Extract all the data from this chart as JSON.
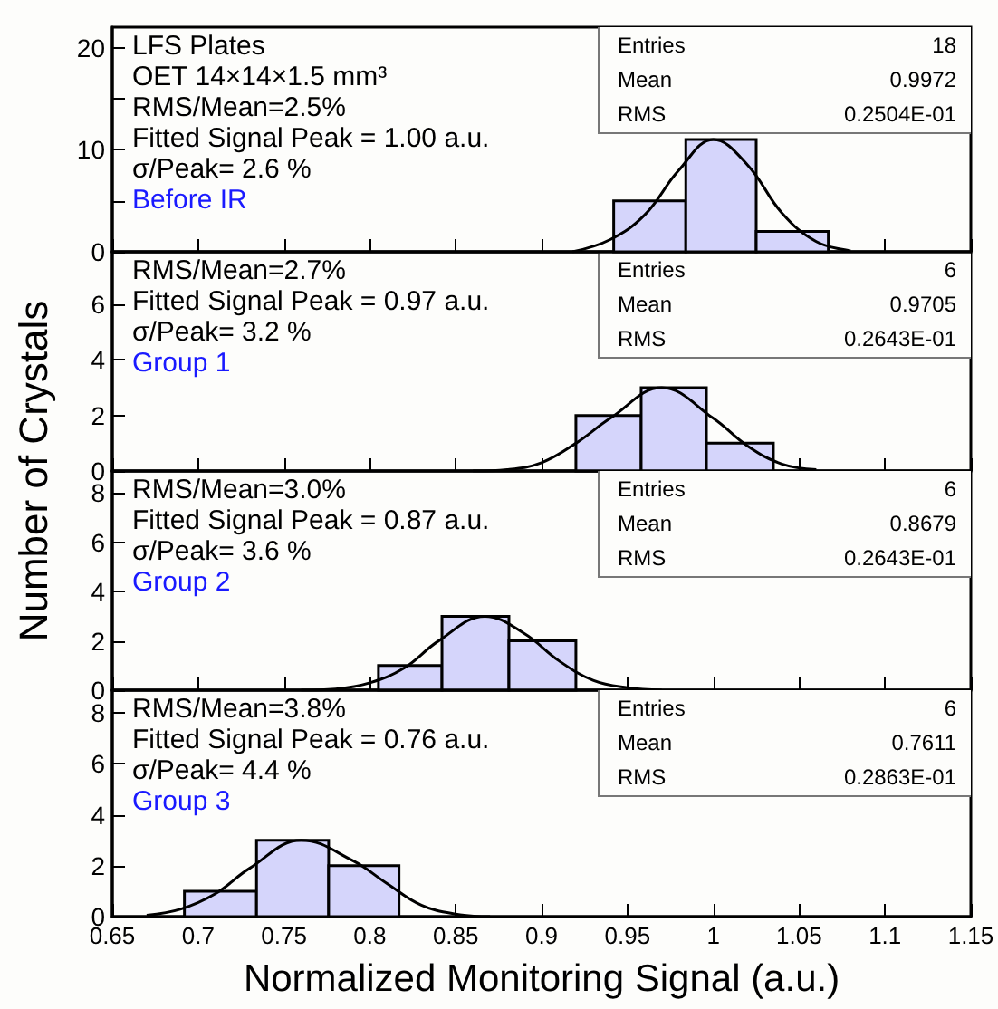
{
  "chart_data": [
    {
      "type": "histogram",
      "title": "Before IR",
      "ylabel": "Number of Crystals",
      "annotations": [
        "LFS Plates",
        "OET  14×14×1.5 mm³",
        "RMS/Mean=2.5%",
        "Fitted Signal Peak = 1.00 a.u.",
        "σ/Peak= 2.6 %",
        "Entries",
        "18",
        "Mean",
        "0.9972",
        "RMS",
        "0.2504E-01"
      ],
      "bins": [
        0.942,
        0.984,
        1.025,
        1.067
      ],
      "series": [
        {
          "color": "#d5d5fb",
          "values": [
            5,
            11,
            2
          ]
        },
        {
          "type": "line",
          "color": "#000000",
          "x": [
            0.918,
            0.94,
            0.96,
            0.98,
            1.0,
            1.02,
            1.04,
            1.06,
            1.08
          ],
          "values": [
            0,
            1.2,
            3.6,
            8,
            11,
            8.5,
            3.8,
            1,
            0.1
          ]
        }
      ],
      "xlim": [
        0.65,
        1.15
      ],
      "xticks": [
        0.65,
        0.7,
        0.75,
        0.8,
        0.85,
        0.9,
        0.95,
        1,
        1.05,
        1.1,
        1.15
      ],
      "ylim": [
        0,
        22
      ],
      "yticks": [
        0,
        {
          "value": 5,
          "label": null
        },
        10,
        {
          "value": 15,
          "label": null
        },
        20
      ],
      "tick_labels": "y"
    },
    {
      "type": "histogram",
      "title": "Group 1",
      "annotations": [
        "RMS/Mean=2.7%",
        "Fitted Signal Peak = 0.97 a.u.",
        "σ/Peak= 3.2 %",
        "Entries",
        "6",
        "Mean",
        "0.9705",
        "RMS",
        "0.2643E-01"
      ],
      "bins": [
        0.92,
        0.958,
        0.996,
        1.035
      ],
      "series": [
        {
          "color": "#d5d5fb",
          "values": [
            2,
            3,
            1
          ]
        },
        {
          "type": "line",
          "color": "#000000",
          "x": [
            0.86,
            0.88,
            0.9,
            0.92,
            0.94,
            0.97,
            1.0,
            1.02,
            1.04,
            1.06
          ],
          "values": [
            0,
            0.05,
            0.3,
            1,
            1.9,
            3,
            1.9,
            0.9,
            0.25,
            0.05
          ]
        }
      ],
      "xlim": [
        0.65,
        1.15
      ],
      "xticks": [
        0.65,
        0.7,
        0.75,
        0.8,
        0.85,
        0.9,
        0.95,
        1,
        1.05,
        1.1,
        1.15
      ],
      "ylim": [
        0,
        7.9
      ],
      "yticks": [
        0,
        2,
        4,
        6
      ],
      "tick_labels": "y"
    },
    {
      "type": "histogram",
      "title": "Group 2",
      "annotations": [
        "RMS/Mean=3.0%",
        "Fitted Signal Peak = 0.87 a.u.",
        "σ/Peak= 3.6 %",
        "Entries",
        "6",
        "Mean",
        "0.8679",
        "RMS",
        "0.2643E-01"
      ],
      "bins": [
        0.805,
        0.842,
        0.881,
        0.92
      ],
      "series": [
        {
          "color": "#d5d5fb",
          "values": [
            1,
            3,
            2
          ]
        },
        {
          "type": "line",
          "color": "#000000",
          "x": [
            0.76,
            0.78,
            0.8,
            0.82,
            0.84,
            0.867,
            0.89,
            0.91,
            0.93,
            0.95,
            0.97
          ],
          "values": [
            0,
            0.05,
            0.3,
            0.9,
            2,
            3,
            2.3,
            1.2,
            0.4,
            0.1,
            0
          ]
        }
      ],
      "xlim": [
        0.65,
        1.15
      ],
      "xticks": [
        0.65,
        0.7,
        0.75,
        0.8,
        0.85,
        0.9,
        0.95,
        1,
        1.05,
        1.1,
        1.15
      ],
      "ylim": [
        0,
        8.9
      ],
      "yticks": [
        0,
        2,
        4,
        6,
        8
      ],
      "tick_labels": "y"
    },
    {
      "type": "histogram",
      "title": "Group 3",
      "xlabel": "Normalized Monitoring Signal (a.u.)",
      "annotations": [
        "RMS/Mean=3.8%",
        "Fitted Signal Peak = 0.76 a.u.",
        "σ/Peak= 4.4 %",
        "Entries",
        "6",
        "Mean",
        "0.7611",
        "RMS",
        "0.2863E-01"
      ],
      "bins": [
        0.692,
        0.734,
        0.776,
        0.817
      ],
      "series": [
        {
          "color": "#d5d5fb",
          "values": [
            1,
            3,
            2
          ]
        },
        {
          "type": "line",
          "color": "#000000",
          "x": [
            0.67,
            0.69,
            0.71,
            0.73,
            0.76,
            0.79,
            0.81,
            0.83,
            0.85,
            0.87
          ],
          "values": [
            0.05,
            0.3,
            0.9,
            1.9,
            3,
            2.2,
            1.3,
            0.45,
            0.1,
            0
          ]
        }
      ],
      "xlim": [
        0.65,
        1.15
      ],
      "xticks": [
        0.65,
        0.7,
        0.75,
        0.8,
        0.85,
        0.9,
        0.95,
        1,
        1.05,
        1.1,
        1.15
      ],
      "ylim": [
        0,
        8.9
      ],
      "yticks": [
        0,
        2,
        4,
        6,
        8
      ]
    }
  ]
}
